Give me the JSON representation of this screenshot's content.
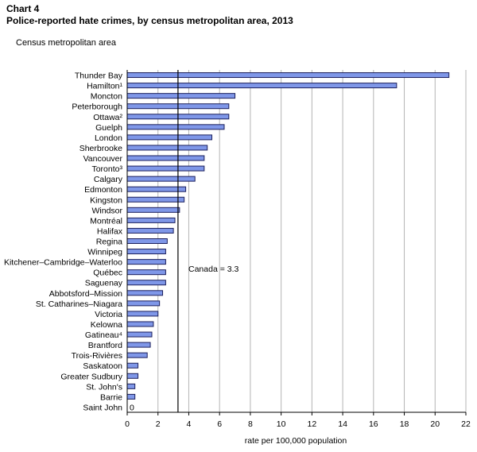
{
  "header": {
    "chart_number": "Chart 4",
    "title": "Police-reported hate crimes, by census metropolitan area, 2013"
  },
  "colors": {
    "bar_fill": "#7f97e8",
    "bar_stroke": "#1b1f5c",
    "grid": "#b4b4b4",
    "reference_line": "#000000"
  },
  "chart_data": {
    "type": "bar",
    "orientation": "horizontal",
    "category_axis_label": "Census metropolitan area",
    "xlabel": "rate per 100,000 population",
    "xlim": [
      0,
      22
    ],
    "xticks": [
      0,
      2,
      4,
      6,
      8,
      10,
      12,
      14,
      16,
      18,
      20,
      22
    ],
    "grid": "vertical",
    "categories": [
      "Thunder Bay",
      "Hamilton¹",
      "Moncton",
      "Peterborough",
      "Ottawa²",
      "Guelph",
      "London",
      "Sherbrooke",
      "Vancouver",
      "Toronto³",
      "Calgary",
      "Edmonton",
      "Kingston",
      "Windsor",
      "Montréal",
      "Halifax",
      "Regina",
      "Winnipeg",
      "Kitchener–Cambridge–Waterloo",
      "Québec",
      "Saguenay",
      "Abbotsford–Mission",
      "St. Catharines–Niagara",
      "Victoria",
      "Kelowna",
      "Gatineau⁴",
      "Brantford",
      "Trois-Rivières",
      "Saskatoon",
      "Greater Sudbury",
      "St. John's",
      "Barrie",
      "Saint John"
    ],
    "values": [
      20.9,
      17.5,
      7.0,
      6.6,
      6.6,
      6.3,
      5.5,
      5.2,
      5.0,
      5.0,
      4.4,
      3.8,
      3.7,
      3.4,
      3.1,
      3.0,
      2.6,
      2.5,
      2.5,
      2.5,
      2.5,
      2.3,
      2.1,
      2.0,
      1.7,
      1.6,
      1.5,
      1.3,
      0.7,
      0.7,
      0.5,
      0.5,
      0
    ],
    "data_labels": [
      {
        "index": 32,
        "text": "0"
      }
    ],
    "reference_line": {
      "value": 3.3,
      "label": "Canada = 3.3"
    }
  }
}
